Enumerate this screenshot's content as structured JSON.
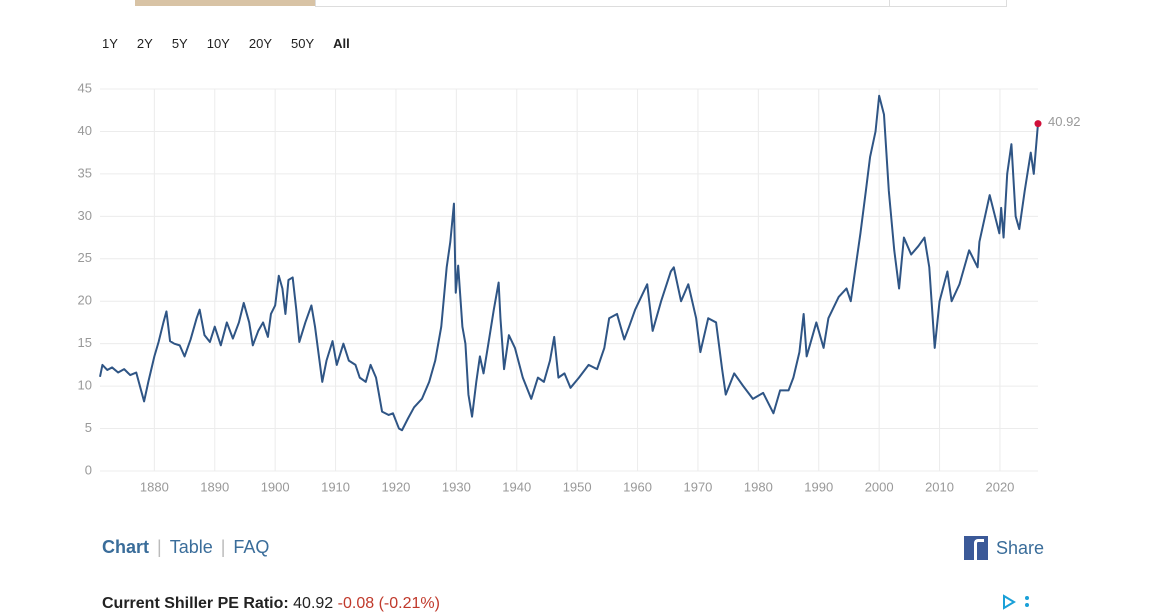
{
  "range_buttons": [
    "1Y",
    "2Y",
    "5Y",
    "10Y",
    "20Y",
    "50Y",
    "All"
  ],
  "tabs": [
    "Chart",
    "Table",
    "FAQ"
  ],
  "share": "Share",
  "summary": {
    "label": "Current Shiller PE Ratio:",
    "value": "40.92",
    "change": "-0.08 (-0.21%)"
  },
  "chart_data": {
    "type": "line",
    "color": "#2f5585",
    "last_point_color": "#d0103a",
    "grid": true,
    "xlim": [
      1871,
      2026.3
    ],
    "xticks": [
      1880,
      1890,
      1900,
      1910,
      1920,
      1930,
      1940,
      1950,
      1960,
      1970,
      1980,
      1990,
      2000,
      2010,
      2020
    ],
    "ylim": [
      0,
      45
    ],
    "yticks": [
      0,
      5,
      10,
      15,
      20,
      25,
      30,
      35,
      40,
      45
    ],
    "x": [
      1871.0,
      1871.4,
      1872.2,
      1873.0,
      1874.0,
      1875.0,
      1876.0,
      1877.0,
      1877.8,
      1878.3,
      1879.0,
      1880.0,
      1880.7,
      1881.5,
      1882.0,
      1882.6,
      1883.3,
      1884.2,
      1885.0,
      1886.0,
      1887.0,
      1887.5,
      1888.3,
      1889.2,
      1890.0,
      1891.0,
      1892.0,
      1893.0,
      1894.0,
      1894.8,
      1895.7,
      1896.3,
      1897.2,
      1898.0,
      1898.8,
      1899.3,
      1900.0,
      1900.6,
      1901.2,
      1901.7,
      1902.2,
      1902.9,
      1903.5,
      1904.0,
      1905.0,
      1906.0,
      1906.6,
      1907.8,
      1908.5,
      1909.5,
      1910.2,
      1911.3,
      1912.2,
      1913.3,
      1914.0,
      1915.0,
      1915.8,
      1916.7,
      1917.7,
      1918.8,
      1919.5,
      1920.5,
      1921.0,
      1922.0,
      1923.0,
      1924.3,
      1925.5,
      1926.5,
      1927.5,
      1928.4,
      1929.0,
      1929.6,
      1929.9,
      1930.3,
      1931.0,
      1931.5,
      1932.0,
      1932.6,
      1933.3,
      1933.9,
      1934.5,
      1935.3,
      1936.2,
      1937.0,
      1937.3,
      1937.9,
      1938.7,
      1939.7,
      1941.0,
      1942.4,
      1943.5,
      1944.5,
      1945.5,
      1946.2,
      1946.9,
      1947.9,
      1948.9,
      1950.3,
      1951.9,
      1953.3,
      1954.5,
      1955.3,
      1956.6,
      1957.8,
      1958.6,
      1959.6,
      1961.6,
      1962.5,
      1963.9,
      1965.5,
      1966.0,
      1967.2,
      1968.4,
      1969.7,
      1970.4,
      1971.7,
      1973.0,
      1974.0,
      1974.6,
      1976.0,
      1977.5,
      1979.1,
      1980.8,
      1982.5,
      1983.6,
      1985.0,
      1985.8,
      1986.8,
      1987.5,
      1988.0,
      1988.6,
      1989.6,
      1990.8,
      1991.6,
      1993.3,
      1994.6,
      1995.3,
      1996.3,
      1996.9,
      1997.8,
      1998.5,
      1999.4,
      2000.0,
      2000.8,
      2001.6,
      2002.5,
      2003.3,
      2004.1,
      2005.3,
      2006.5,
      2007.5,
      2008.3,
      2009.2,
      2010.0,
      2011.3,
      2012.0,
      2013.3,
      2014.9,
      2016.3,
      2016.6,
      2018.3,
      2019.9,
      2020.2,
      2020.6,
      2021.2,
      2021.9,
      2022.6,
      2023.2,
      2024.1,
      2025.1,
      2025.6,
      2026.3
    ],
    "values": [
      11.1,
      12.5,
      11.9,
      12.2,
      11.6,
      12.0,
      11.3,
      11.6,
      9.5,
      8.2,
      10.5,
      13.5,
      15.2,
      17.5,
      18.8,
      15.3,
      15.0,
      14.8,
      13.5,
      15.5,
      18.0,
      19.0,
      16.0,
      15.2,
      17.0,
      14.8,
      17.5,
      15.6,
      17.5,
      19.8,
      17.5,
      14.8,
      16.5,
      17.5,
      15.8,
      18.5,
      19.5,
      23.0,
      21.5,
      18.5,
      22.5,
      22.8,
      19.0,
      15.2,
      17.5,
      19.5,
      17.0,
      10.5,
      13.0,
      15.3,
      12.5,
      15.0,
      13.0,
      12.5,
      11.0,
      10.5,
      12.5,
      11.0,
      7.0,
      6.6,
      6.8,
      5.0,
      4.8,
      6.2,
      7.5,
      8.5,
      10.5,
      13.0,
      17.0,
      24.0,
      27.0,
      31.5,
      21.0,
      24.2,
      17.0,
      15.0,
      9.0,
      6.4,
      10.5,
      13.5,
      11.5,
      15.0,
      19.0,
      22.2,
      18.0,
      12.0,
      16.0,
      14.5,
      11.0,
      8.5,
      11.0,
      10.5,
      13.0,
      15.8,
      11.0,
      11.5,
      9.8,
      11.0,
      12.5,
      12.0,
      14.5,
      18.0,
      18.5,
      15.5,
      17.0,
      19.0,
      22.0,
      16.5,
      20.0,
      23.5,
      24.0,
      20.0,
      22.0,
      18.0,
      14.0,
      18.0,
      17.5,
      12.0,
      9.0,
      11.5,
      10.0,
      8.5,
      9.2,
      6.8,
      9.5,
      9.5,
      11.0,
      14.0,
      18.5,
      13.5,
      15.0,
      17.5,
      14.5,
      18.0,
      20.5,
      21.5,
      20.0,
      25.0,
      28.0,
      33.0,
      37.0,
      40.0,
      44.2,
      42.0,
      33.0,
      26.0,
      21.5,
      27.5,
      25.5,
      26.5,
      27.5,
      24.0,
      14.5,
      20.0,
      23.5,
      20.0,
      22.0,
      26.0,
      24.0,
      27.0,
      32.5,
      28.0,
      31.0,
      27.5,
      35.0,
      38.5,
      30.0,
      28.5,
      33.0,
      37.5,
      35.0,
      40.92
    ]
  }
}
